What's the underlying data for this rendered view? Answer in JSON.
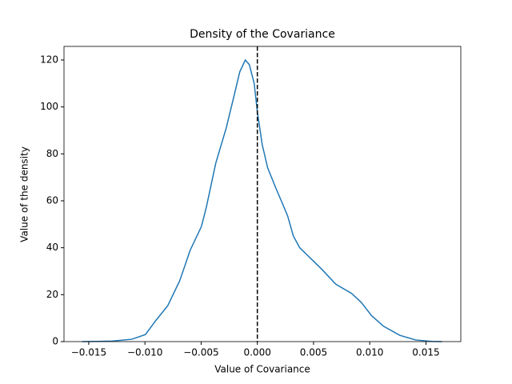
{
  "chart_data": {
    "type": "line",
    "title": "Density of the Covariance",
    "xlabel": "Value of Covariance",
    "ylabel": "Value of the density",
    "x": [
      -0.01558,
      -0.01294,
      -0.01117,
      -0.00996,
      -0.00903,
      -0.00797,
      -0.0069,
      -0.00597,
      -0.00498,
      -0.00455,
      -0.0037,
      -0.00277,
      -0.00206,
      -0.00156,
      -0.00107,
      -0.00071,
      -0.00028,
      0,
      0.00043,
      0.00092,
      0.00164,
      0.00213,
      0.0027,
      0.0032,
      0.00377,
      0.00484,
      0.00576,
      0.00697,
      0.00839,
      0.00925,
      0.01017,
      0.01124,
      0.01266,
      0.01408,
      0.0155,
      0.01643
    ],
    "series": [
      {
        "name": "density",
        "color": "#1f77b4",
        "values": [
          0,
          0.2,
          1,
          3,
          9,
          15.3,
          26,
          39,
          49,
          57,
          76,
          91,
          105,
          115,
          120,
          118,
          110,
          98,
          84,
          74,
          65.5,
          60,
          53.5,
          45,
          40,
          35,
          30.7,
          24.5,
          20.5,
          16.7,
          11,
          6.5,
          2.7,
          0.7,
          0.1,
          0
        ]
      }
    ],
    "vline": {
      "x": 0,
      "color": "#000000"
    },
    "xlim": [
      -0.0172,
      0.0181
    ],
    "ylim": [
      0,
      125.8
    ],
    "xticks": [
      {
        "value": -0.015,
        "label": "−0.015"
      },
      {
        "value": -0.01,
        "label": "−0.010"
      },
      {
        "value": -0.005,
        "label": "−0.005"
      },
      {
        "value": 0,
        "label": "0.000"
      },
      {
        "value": 0.005,
        "label": "0.005"
      },
      {
        "value": 0.01,
        "label": "0.010"
      },
      {
        "value": 0.015,
        "label": "0.015"
      }
    ],
    "yticks": [
      0,
      20,
      40,
      60,
      80,
      100,
      120
    ],
    "grid": false
  }
}
